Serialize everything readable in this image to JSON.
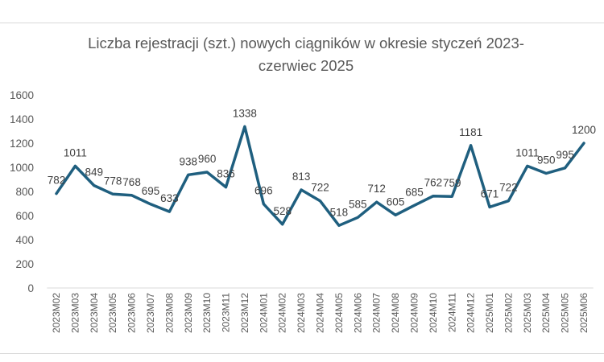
{
  "chart_data": {
    "type": "line",
    "title": "Liczba rejestracji (szt.) nowych ciągników w okresie styczeń 2023-czerwiec 2025",
    "title_lines": [
      "Liczba rejestracji (szt.) nowych ciągników w okresie styczeń 2023-",
      "czerwiec 2025"
    ],
    "xlabel": "",
    "ylabel": "",
    "ylim": [
      0,
      1600
    ],
    "yticks": [
      0,
      200,
      400,
      600,
      800,
      1000,
      1200,
      1400,
      1600
    ],
    "grid": false,
    "legend": "none",
    "line_color": "#1f5f7f",
    "categories": [
      "2023M02",
      "2023M03",
      "2023M04",
      "2023M05",
      "2023M06",
      "2023M07",
      "2023M08",
      "2023M09",
      "2023M10",
      "2023M11",
      "2023M12",
      "2024M01",
      "2024M02",
      "2024M03",
      "2024M04",
      "2024M05",
      "2024M06",
      "2024M07",
      "2024M08",
      "2024M09",
      "2024M10",
      "2024M11",
      "2024M12",
      "2025M01",
      "2025M02",
      "2025M03",
      "2025M04",
      "2025M05",
      "2025M06"
    ],
    "values": [
      782,
      1011,
      849,
      778,
      768,
      695,
      633,
      938,
      960,
      836,
      1338,
      696,
      528,
      813,
      722,
      518,
      585,
      712,
      605,
      685,
      762,
      759,
      1181,
      671,
      722,
      1011,
      950,
      995,
      1200
    ]
  }
}
